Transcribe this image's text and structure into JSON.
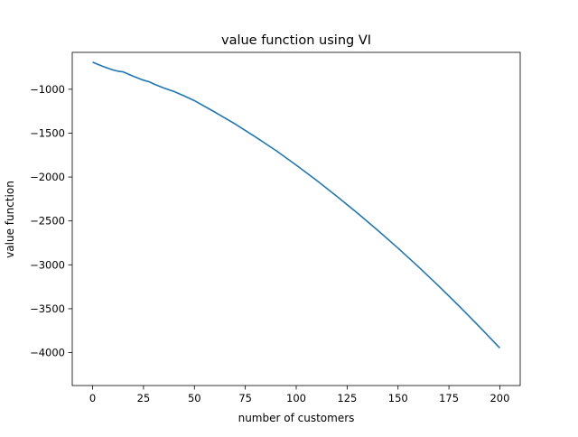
{
  "chart_data": {
    "type": "line",
    "title": "value function using VI",
    "xlabel": "number of customers",
    "ylabel": "value function",
    "xlim": [
      -10,
      210
    ],
    "ylim": [
      -4375,
      -580
    ],
    "xticks": [
      0,
      25,
      50,
      75,
      100,
      125,
      150,
      175,
      200
    ],
    "xtick_labels": [
      "0",
      "25",
      "50",
      "75",
      "100",
      "125",
      "150",
      "175",
      "200"
    ],
    "yticks": [
      -1000,
      -1500,
      -2000,
      -2500,
      -3000,
      -3500,
      -4000
    ],
    "ytick_labels": [
      "−1000",
      "−1500",
      "−2000",
      "−2500",
      "−3000",
      "−3500",
      "−4000"
    ],
    "grid": false,
    "line_color": "#1f77b4",
    "series": [
      {
        "x": [
          0,
          5,
          10,
          13,
          15,
          20,
          25,
          28,
          30,
          35,
          40,
          45,
          50,
          60,
          70,
          80,
          90,
          100,
          110,
          120,
          130,
          140,
          150,
          160,
          170,
          180,
          190,
          200
        ],
        "y": [
          -692,
          -739,
          -780,
          -797,
          -802,
          -853,
          -897,
          -917,
          -940,
          -986,
          -1026,
          -1076,
          -1130,
          -1260,
          -1396,
          -1543,
          -1697,
          -1864,
          -2038,
          -2220,
          -2409,
          -2606,
          -2810,
          -3022,
          -3242,
          -3470,
          -3706,
          -3948
        ]
      }
    ]
  }
}
